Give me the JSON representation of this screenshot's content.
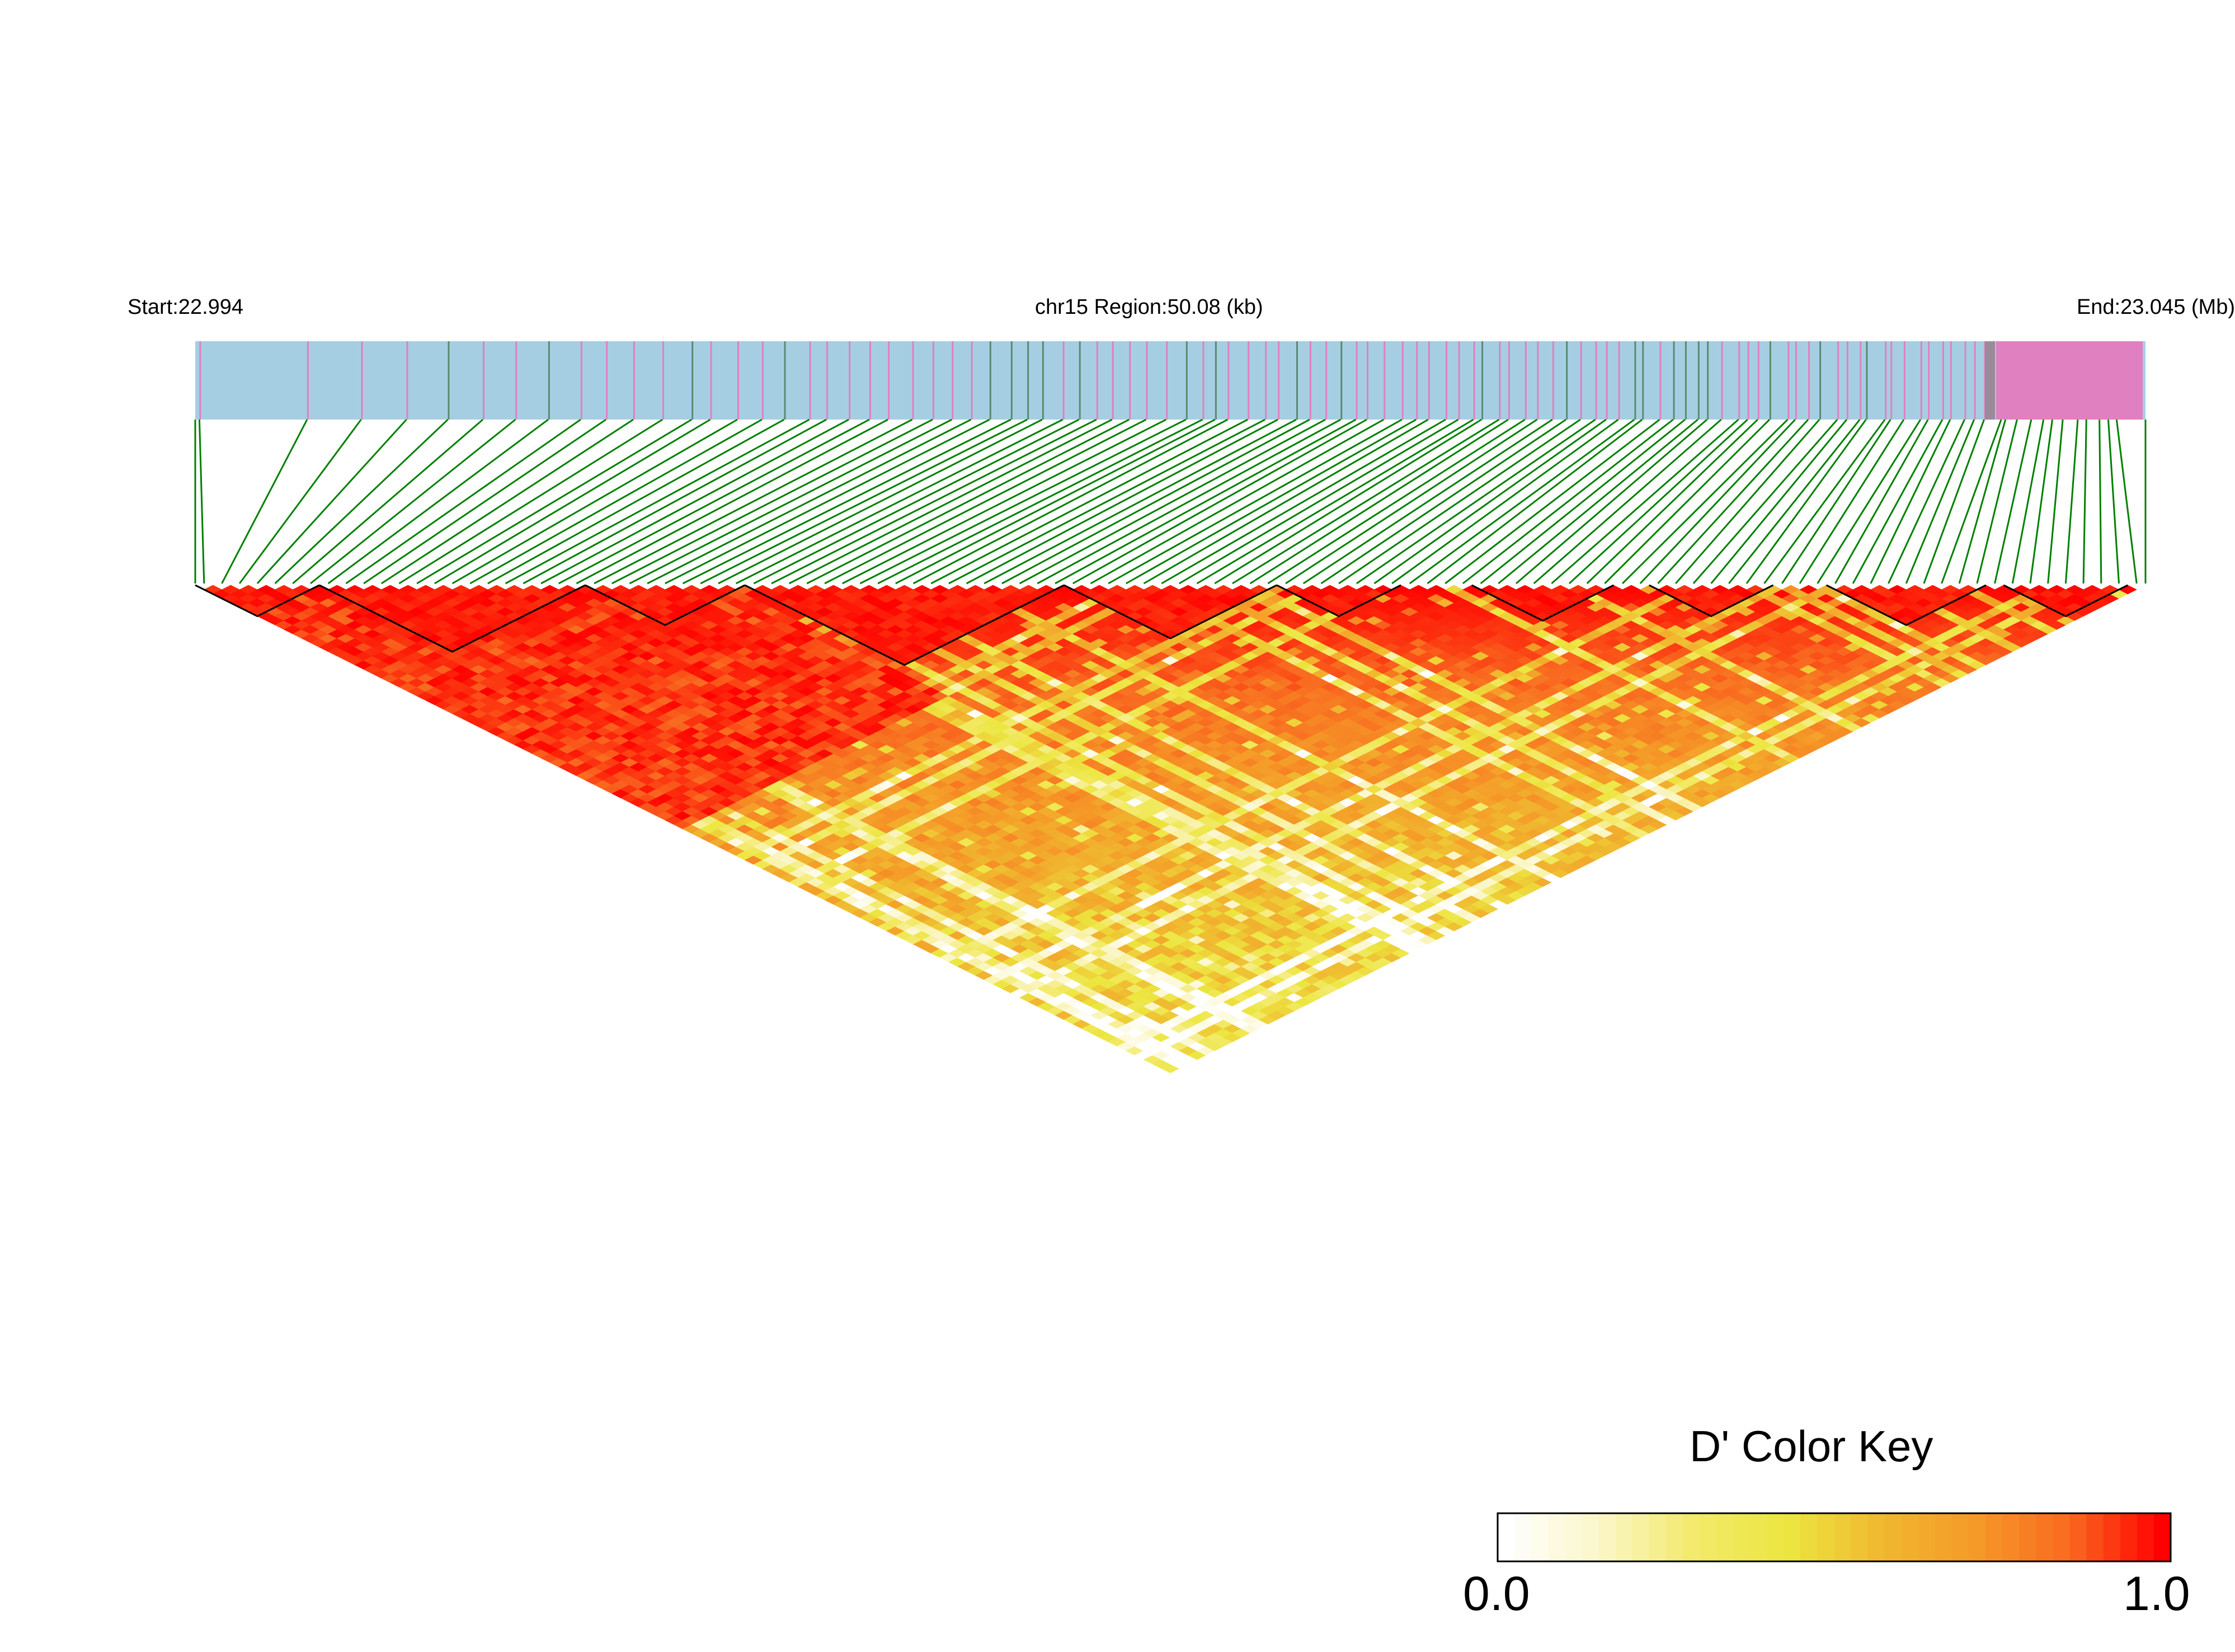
{
  "header": {
    "start_label": "Start:22.994",
    "region_label": "chr15 Region:50.08 (kb)",
    "end_label": "End:23.045 (Mb)"
  },
  "color_key": {
    "title": "D' Color Key",
    "min_label": "0.0",
    "max_label": "1.0",
    "stops": [
      "#ffffff",
      "#fbf6c8",
      "#f3ea6c",
      "#ece640",
      "#f0b830",
      "#f59a28",
      "#f96a20",
      "#ff0000"
    ]
  },
  "colors": {
    "gene_track_bg": "#a6cee3",
    "gene_track_marks": "#e080c0",
    "snp_lines": "#008000",
    "ld_high": "#ff0000",
    "block_outline": "#000000"
  },
  "chart_data": {
    "type": "heatmap",
    "description_type": "LD heatmap (D')",
    "chromosome": "chr15",
    "region_start_mb": 22.994,
    "region_end_mb": 23.045,
    "region_length_kb": 50.08,
    "value_range": [
      0.0,
      1.0
    ],
    "value_label": "D'",
    "ld_blocks_marked": true
  }
}
